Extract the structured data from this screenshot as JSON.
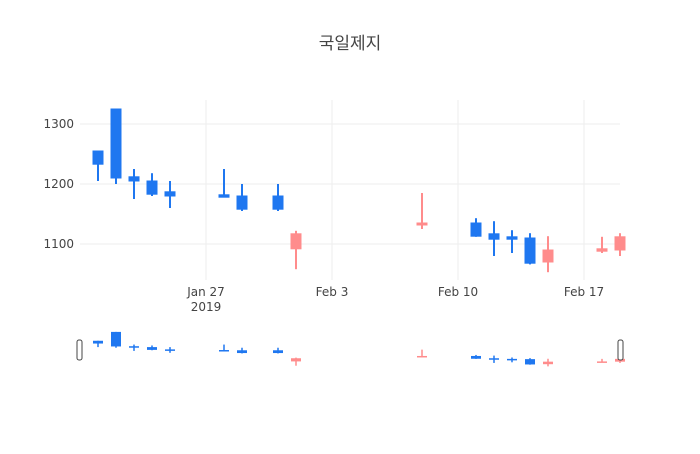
{
  "chart_data": {
    "type": "candlestick",
    "title": "국일제지",
    "xlabel": "",
    "ylabel": "",
    "ylim": [
      1040,
      1340
    ],
    "xlim": [
      "2019-01-20",
      "2019-02-19"
    ],
    "grid": true,
    "legend": "none",
    "colors": {
      "increasing": "#ff8c8c",
      "decreasing": "#1f77f0",
      "grid": "#eeeeee",
      "text": "#444444"
    },
    "y_ticks": [
      {
        "value": 1100,
        "label": "1100"
      },
      {
        "value": 1200,
        "label": "1200"
      },
      {
        "value": 1300,
        "label": "1300"
      }
    ],
    "x_ticks": [
      {
        "date": "2019-01-27",
        "label": "Jan 27",
        "sublabel": "2019"
      },
      {
        "date": "2019-02-03",
        "label": "Feb 3",
        "sublabel": ""
      },
      {
        "date": "2019-02-10",
        "label": "Feb 10",
        "sublabel": ""
      },
      {
        "date": "2019-02-17",
        "label": "Feb 17",
        "sublabel": ""
      }
    ],
    "candles": [
      {
        "date": "2019-01-21",
        "open": 1255,
        "high": 1255,
        "low": 1205,
        "close": 1233
      },
      {
        "date": "2019-01-22",
        "open": 1325,
        "high": 1325,
        "low": 1200,
        "close": 1210
      },
      {
        "date": "2019-01-23",
        "open": 1212,
        "high": 1225,
        "low": 1175,
        "close": 1205
      },
      {
        "date": "2019-01-24",
        "open": 1205,
        "high": 1218,
        "low": 1180,
        "close": 1183
      },
      {
        "date": "2019-01-25",
        "open": 1187,
        "high": 1205,
        "low": 1160,
        "close": 1180
      },
      {
        "date": "2019-01-28",
        "open": 1182,
        "high": 1225,
        "low": 1178,
        "close": 1178
      },
      {
        "date": "2019-01-29",
        "open": 1180,
        "high": 1200,
        "low": 1155,
        "close": 1158
      },
      {
        "date": "2019-01-31",
        "open": 1180,
        "high": 1200,
        "low": 1155,
        "close": 1158
      },
      {
        "date": "2019-02-01",
        "open": 1092,
        "high": 1122,
        "low": 1058,
        "close": 1117
      },
      {
        "date": "2019-02-08",
        "open": 1132,
        "high": 1185,
        "low": 1125,
        "close": 1135
      },
      {
        "date": "2019-02-11",
        "open": 1135,
        "high": 1143,
        "low": 1112,
        "close": 1113
      },
      {
        "date": "2019-02-12",
        "open": 1117,
        "high": 1138,
        "low": 1080,
        "close": 1108
      },
      {
        "date": "2019-02-13",
        "open": 1112,
        "high": 1123,
        "low": 1085,
        "close": 1108
      },
      {
        "date": "2019-02-14",
        "open": 1110,
        "high": 1118,
        "low": 1066,
        "close": 1068
      },
      {
        "date": "2019-02-15",
        "open": 1070,
        "high": 1113,
        "low": 1053,
        "close": 1090
      },
      {
        "date": "2019-02-18",
        "open": 1088,
        "high": 1112,
        "low": 1085,
        "close": 1092
      },
      {
        "date": "2019-02-19",
        "open": 1090,
        "high": 1118,
        "low": 1080,
        "close": 1112
      }
    ]
  }
}
